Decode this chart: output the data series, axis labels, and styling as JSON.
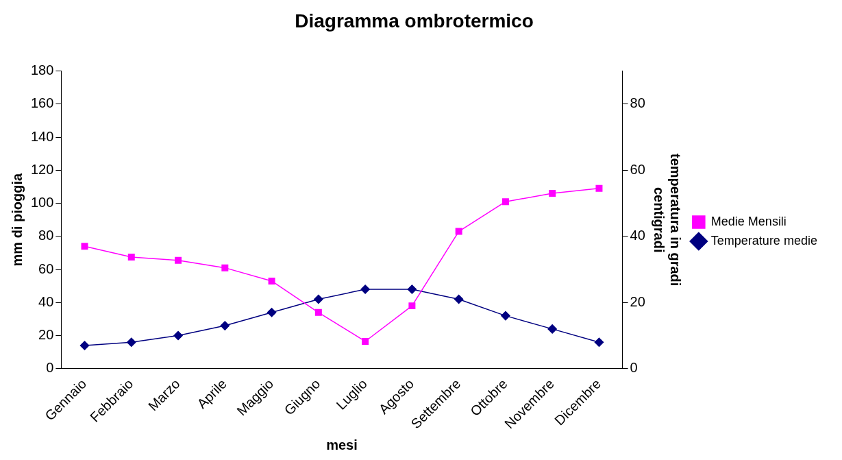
{
  "chart_data": {
    "type": "line",
    "title": "Diagramma ombrotermico",
    "xlabel": "mesi",
    "ylabel": "mm di pioggia",
    "y2label": "temperatura in gradi centigradi",
    "categories": [
      "Gennaio",
      "Febbraio",
      "Marzo",
      "Aprile",
      "Maggio",
      "Giugno",
      "Luglio",
      "Agosto",
      "Settembre",
      "Ottobre",
      "Novembre",
      "Dicembre"
    ],
    "series": [
      {
        "name": "Medie Mensili",
        "color": "#ff00ff",
        "marker": "square",
        "values": [
          74,
          67.5,
          65.5,
          61,
          53,
          34,
          16.5,
          38,
          83,
          101,
          106,
          109
        ]
      },
      {
        "name": "Temperature medie",
        "color": "#000080",
        "marker": "diamond",
        "axis": "y2",
        "values": [
          7,
          8,
          10,
          13,
          17,
          21,
          24,
          24,
          21,
          16,
          12,
          8
        ]
      }
    ],
    "ylim": [
      0,
      180
    ],
    "yticks": [
      0,
      20,
      40,
      60,
      80,
      100,
      120,
      140,
      160,
      180
    ],
    "y2lim": [
      0,
      90
    ],
    "y2ticks": [
      0,
      20,
      40,
      60,
      80
    ],
    "grid": false,
    "legend": "right"
  }
}
